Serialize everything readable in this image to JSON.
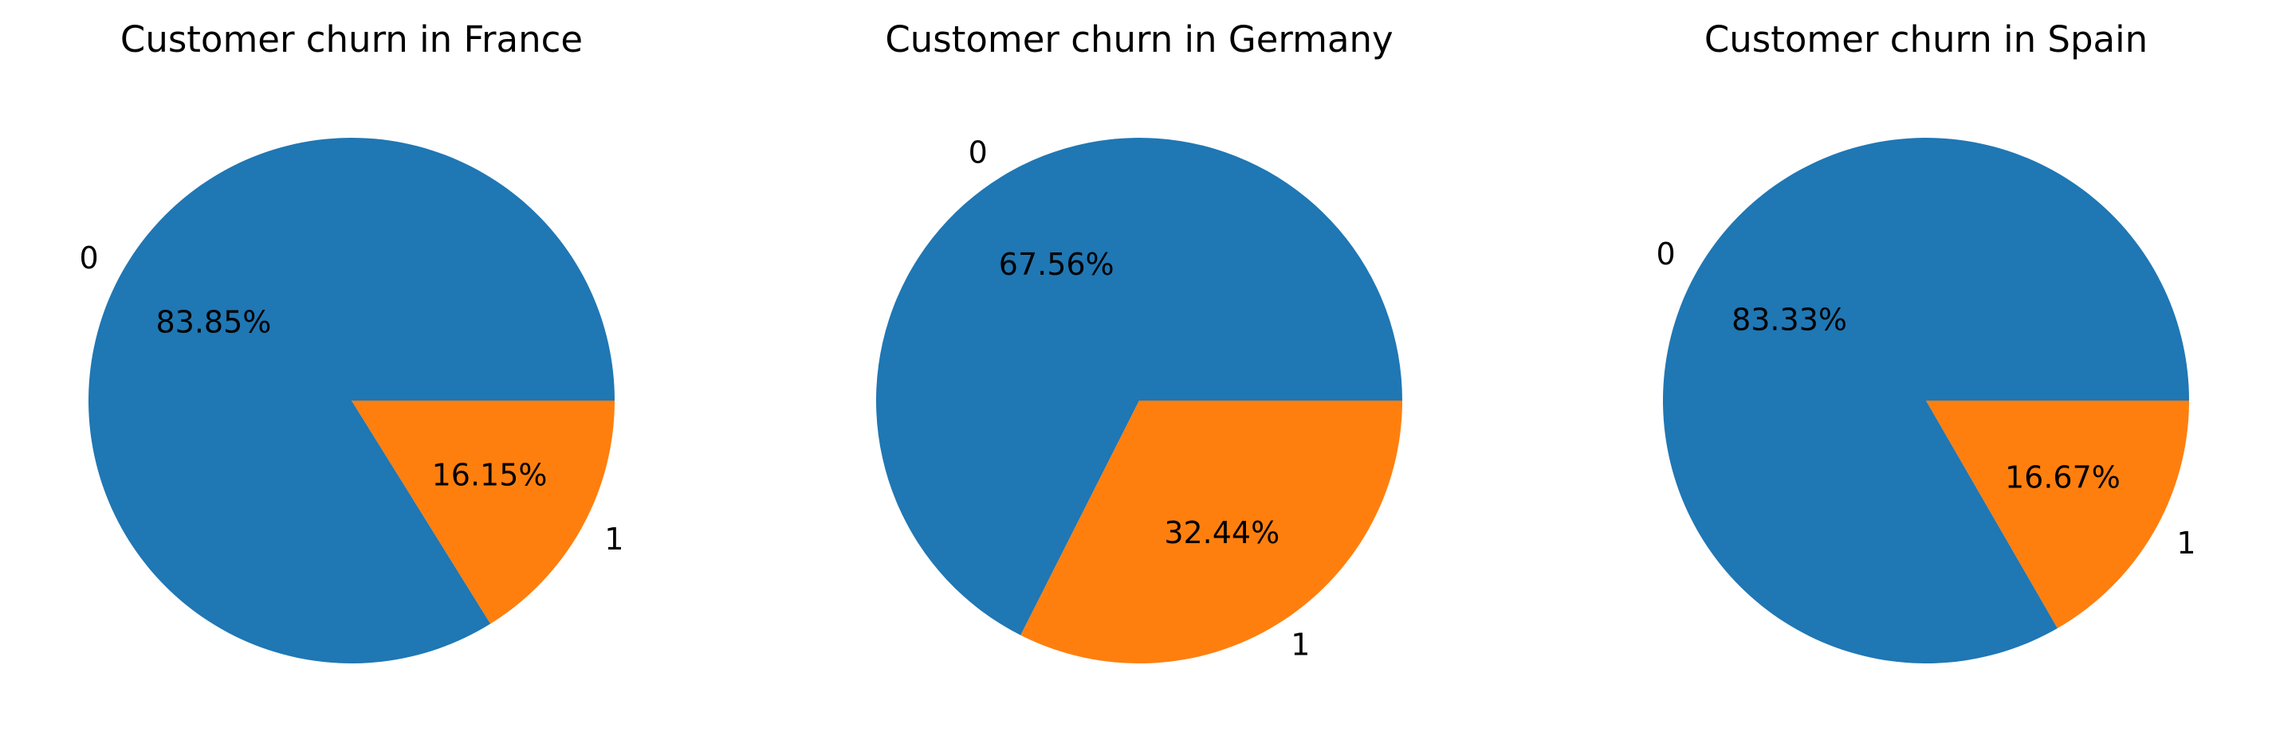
{
  "chart_data": [
    {
      "type": "pie",
      "title": "Customer churn in France",
      "labels": [
        "0",
        "1"
      ],
      "values": [
        83.85,
        16.15
      ],
      "value_labels": [
        "83.85%",
        "16.15%"
      ],
      "colors": [
        "#1f77b4",
        "#ff7f0e"
      ]
    },
    {
      "type": "pie",
      "title": "Customer churn in Germany",
      "labels": [
        "0",
        "1"
      ],
      "values": [
        67.56,
        32.44
      ],
      "value_labels": [
        "67.56%",
        "32.44%"
      ],
      "colors": [
        "#1f77b4",
        "#ff7f0e"
      ]
    },
    {
      "type": "pie",
      "title": "Customer churn in Spain",
      "labels": [
        "0",
        "1"
      ],
      "values": [
        83.33,
        16.67
      ],
      "value_labels": [
        "83.33%",
        "16.67%"
      ],
      "colors": [
        "#1f77b4",
        "#ff7f0e"
      ]
    }
  ]
}
